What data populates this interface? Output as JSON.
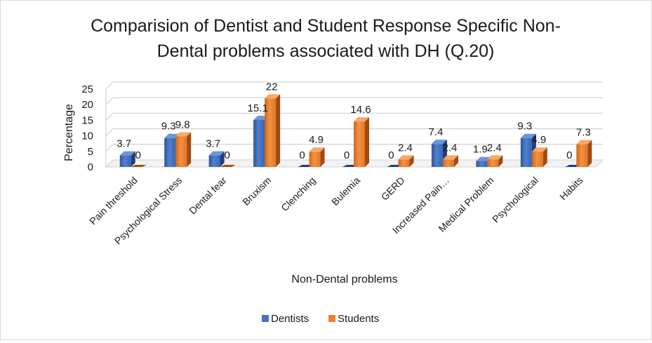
{
  "chart_data": {
    "type": "bar",
    "title": "Comparision of Dentist and Student Response Specific Non-Dental problems associated with DH (Q.20)",
    "title_lines": [
      "Comparision of Dentist and Student Response Specific Non-",
      "Dental problems associated with DH (Q.20)"
    ],
    "xlabel": "Non-Dental problems",
    "ylabel": "Percentage",
    "ylim": [
      0,
      25
    ],
    "yticks": [
      0,
      5,
      10,
      15,
      20,
      25
    ],
    "grid": true,
    "legend_position": "bottom",
    "categories": [
      "Pain threshold",
      "Psychological Stress",
      "Dental fear",
      "Bruxism",
      "Clenching",
      "Bulemia",
      "GERD",
      "Increased Pain…",
      "Medical Problem",
      "Psychological",
      "Habits"
    ],
    "series": [
      {
        "name": "Dentists",
        "values": [
          3.7,
          9.3,
          3.7,
          15.1,
          0,
          0,
          0,
          7.4,
          1.9,
          9.3,
          0
        ],
        "color": "#4472c4"
      },
      {
        "name": "Students",
        "values": [
          0,
          9.8,
          0,
          22,
          4.9,
          14.6,
          2.4,
          2.4,
          2.4,
          4.9,
          7.3
        ],
        "color": "#ed7d31"
      }
    ]
  }
}
